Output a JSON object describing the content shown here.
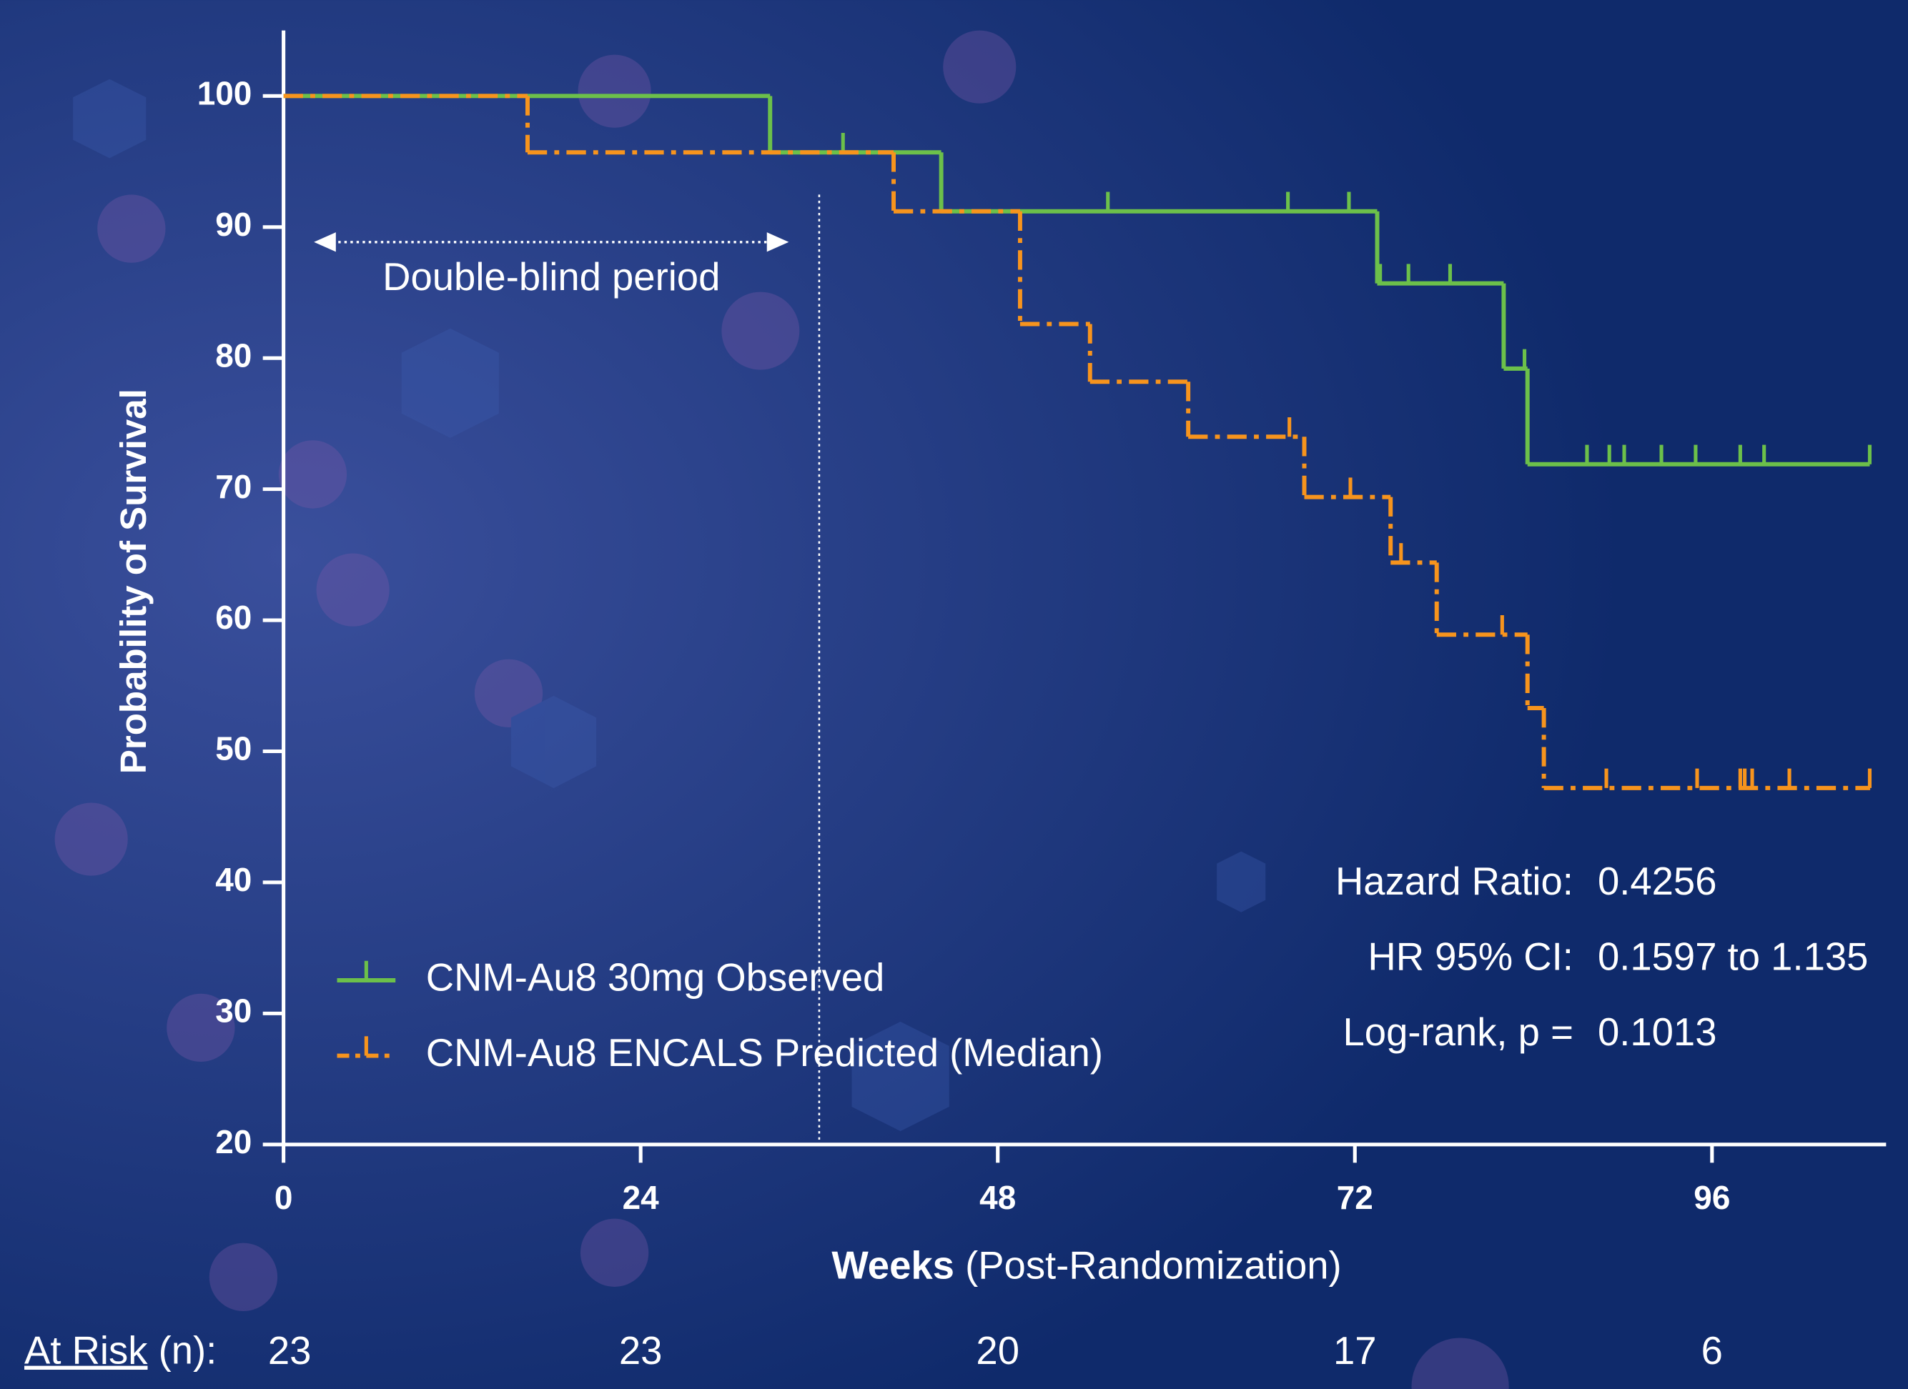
{
  "chart_data": {
    "type": "kaplan-meier",
    "y_label": "Probability of Survival",
    "x_label_bold": "Weeks",
    "x_label_rest": "(Post-Randomization)",
    "xlim": [
      0,
      107.7
    ],
    "xticks": [
      0,
      24,
      48,
      72,
      96
    ],
    "ylim": [
      20,
      105
    ],
    "yticks": [
      20,
      30,
      40,
      50,
      60,
      70,
      80,
      90,
      100
    ],
    "reference_line_x": 36,
    "annotation": "Double-blind period",
    "series": [
      {
        "name": "CNM-Au8 30mg Observed",
        "color": "#6cc04a",
        "dash": false,
        "x": [
          0,
          32.7,
          44.2,
          73.5,
          82.0,
          83.6,
          106.6
        ],
        "values": [
          100,
          95.7,
          91.2,
          85.7,
          79.2,
          71.9,
          71.9
        ],
        "censor_x": [
          37.6,
          55.4,
          67.5,
          71.6,
          73.7,
          75.6,
          78.4,
          83.4,
          87.6,
          89.1,
          90.1,
          92.6,
          94.9,
          97.9,
          99.5,
          106.6
        ],
        "censor_values": [
          95.7,
          91.2,
          91.2,
          91.2,
          85.7,
          85.7,
          85.7,
          79.2,
          71.9,
          71.9,
          71.9,
          71.9,
          71.9,
          71.9,
          71.9,
          71.9
        ]
      },
      {
        "name": "CNM-Au8 ENCALS Predicted (Median)",
        "color": "#f7941d",
        "dash": true,
        "x": [
          0,
          16.4,
          41.0,
          49.5,
          54.2,
          60.8,
          68.6,
          74.4,
          77.5,
          83.6,
          84.7,
          106.6
        ],
        "values": [
          100,
          95.7,
          91.2,
          82.6,
          78.2,
          74.0,
          69.4,
          64.4,
          58.9,
          53.3,
          47.2,
          47.2
        ],
        "censor_x": [
          67.6,
          71.7,
          75.1,
          81.9,
          88.9,
          95.0,
          97.9,
          98.2,
          98.7,
          101.2,
          106.6
        ],
        "censor_values": [
          74.0,
          69.4,
          64.4,
          58.9,
          47.2,
          47.2,
          47.2,
          47.2,
          47.2,
          47.2,
          47.2
        ]
      }
    ],
    "stats": [
      {
        "label": "Hazard Ratio:",
        "value": "0.4256"
      },
      {
        "label": "HR 95% CI:",
        "value": "0.1597 to 1.135"
      },
      {
        "label": "Log-rank, p =",
        "value": "0.1013"
      }
    ],
    "at_risk": {
      "label": "At Risk",
      "unit": "(n):",
      "values": [
        23,
        23,
        20,
        17,
        6
      ]
    }
  }
}
